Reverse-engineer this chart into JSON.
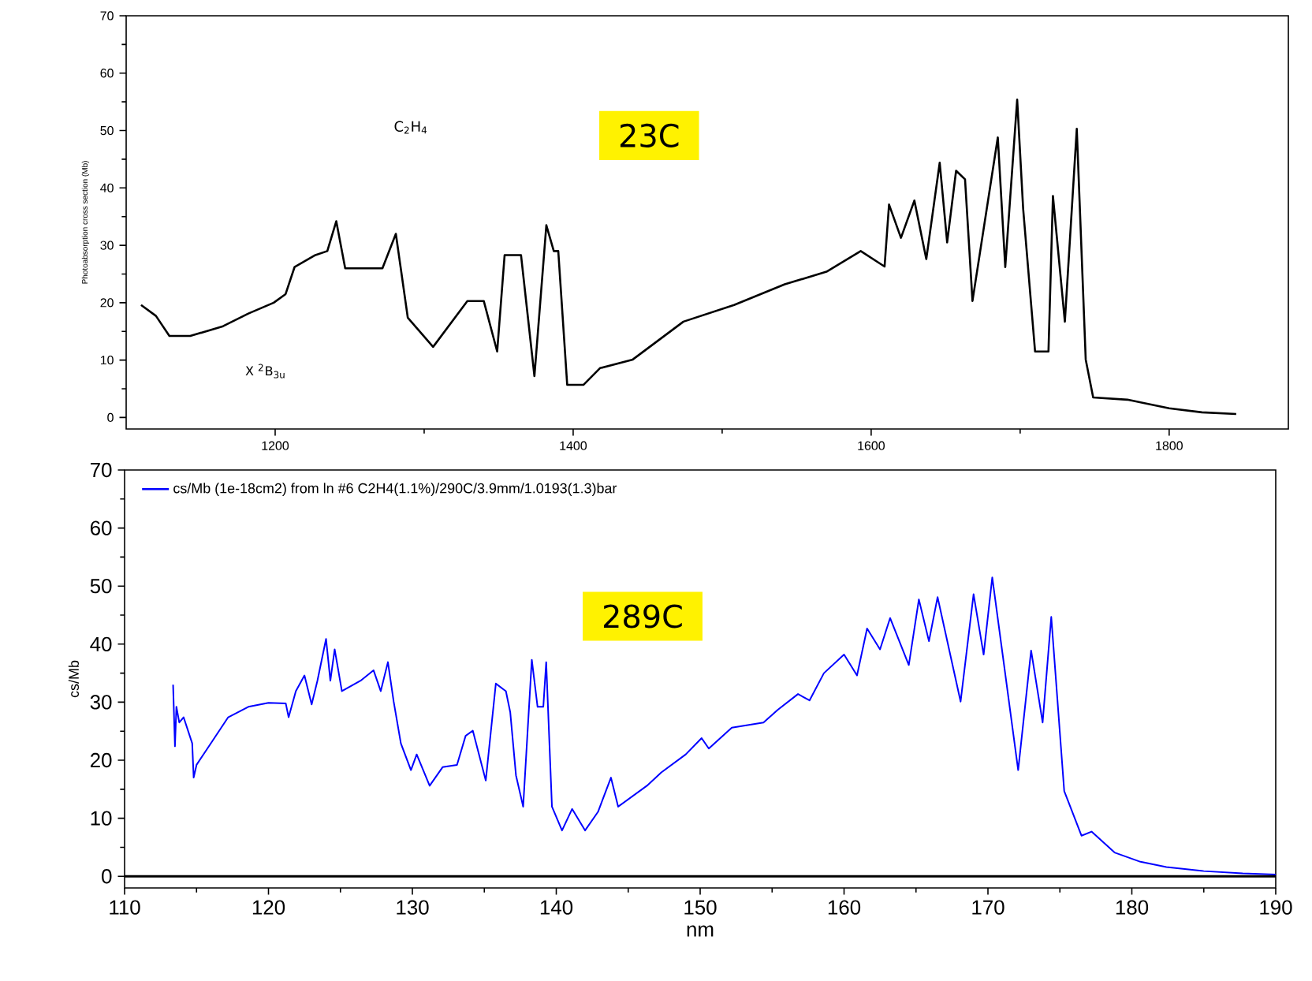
{
  "chart_data": [
    {
      "type": "line",
      "ylabel": "Photoabsorption cross section (Mb)",
      "xlim": [
        1100,
        1880
      ],
      "xticks": [
        1200,
        1400,
        1600,
        1800
      ],
      "ylim": [
        -2,
        70
      ],
      "yticks": [
        0,
        10,
        20,
        30,
        40,
        50,
        60,
        70
      ],
      "grid": false,
      "annotations": [
        "C$_{2}$H$_{4}$",
        "X $^{2}$B$_{3u}$",
        "23C"
      ],
      "series": [
        {
          "color": "#000000",
          "x": [
            1110,
            1120,
            1129,
            1143,
            1165,
            1182,
            1199,
            1207,
            1213,
            1227,
            1235,
            1241,
            1247,
            1272,
            1281,
            1289,
            1306,
            1329,
            1340,
            1349,
            1354,
            1365,
            1374,
            1382,
            1387,
            1390,
            1396,
            1407,
            1418,
            1440,
            1474,
            1508,
            1542,
            1570,
            1593,
            1609,
            1612,
            1620,
            1629,
            1637,
            1646,
            1651,
            1657,
            1663,
            1668,
            1685,
            1690,
            1698,
            1702,
            1710,
            1719,
            1722,
            1730,
            1738,
            1744,
            1749,
            1772,
            1800,
            1822,
            1845
          ],
          "values": [
            19.6,
            17.7,
            14.2,
            14.2,
            15.9,
            18.1,
            20,
            21.5,
            26.2,
            28.3,
            29,
            34.2,
            26,
            26,
            32,
            17.4,
            12.3,
            20.3,
            20.3,
            11.5,
            28.3,
            28.3,
            7.2,
            33.5,
            29,
            29,
            5.7,
            5.7,
            8.6,
            10.1,
            16.7,
            19.6,
            23.2,
            25.4,
            29,
            26.3,
            37.1,
            31.3,
            37.8,
            27.6,
            44.4,
            30.5,
            43,
            41.5,
            20.3,
            48.8,
            26.2,
            55.4,
            36.4,
            11.5,
            11.5,
            38.6,
            16.7,
            50.3,
            10.1,
            3.5,
            3.1,
            1.6,
            0.9,
            0.6
          ]
        }
      ]
    },
    {
      "type": "line",
      "xlabel": "nm",
      "ylabel": "cs/Mb",
      "xlim": [
        110,
        190
      ],
      "xticks": [
        110,
        120,
        130,
        140,
        150,
        160,
        170,
        180,
        190
      ],
      "ylim": [
        -2,
        70
      ],
      "yticks": [
        0,
        10,
        20,
        30,
        40,
        50,
        60,
        70
      ],
      "grid": false,
      "legend": "top left",
      "annotations": [
        "289C"
      ],
      "ref_lines": [
        {
          "axis": "y",
          "value": 0,
          "color": "#000000"
        }
      ],
      "series": [
        {
          "name": "cs/Mb (1e-18cm2) from ln  #6 C2H4(1.1%)/290C/3.9mm/1.0193(1.3)bar",
          "color": "#0000ff",
          "x": [
            113.37,
            113.5,
            113.6,
            113.8,
            114.1,
            114.7,
            114.8,
            115.0,
            116.1,
            117.2,
            118.6,
            120,
            121.2,
            121.4,
            121.9,
            122.5,
            123.0,
            123.4,
            124.0,
            124.3,
            124.6,
            125.1,
            126.4,
            127.3,
            127.8,
            128.3,
            128.7,
            129.2,
            129.9,
            130.3,
            131.2,
            132.1,
            133.1,
            133.7,
            134.2,
            135.1,
            135.8,
            136.5,
            136.8,
            137.2,
            137.7,
            138.3,
            138.7,
            139.1,
            139.3,
            139.7,
            140.4,
            141.1,
            142.0,
            142.9,
            143.8,
            144.3,
            146.3,
            147.3,
            149.0,
            150.1,
            150.6,
            152.2,
            154.4,
            155.4,
            156.8,
            157.6,
            158.6,
            160.0,
            160.9,
            161.6,
            162.5,
            163.2,
            164.5,
            165.2,
            165.9,
            166.5,
            168.1,
            169.0,
            169.7,
            170.3,
            172.1,
            173.0,
            173.8,
            174.4,
            175.3,
            176.5,
            177.2,
            178.8,
            180.6,
            182.4,
            185.0,
            187.7,
            190.0
          ],
          "values": [
            33.0,
            22.4,
            29.2,
            26.5,
            27.4,
            22.9,
            17.0,
            19.2,
            23.3,
            27.4,
            29.2,
            29.9,
            29.8,
            27.4,
            31.9,
            34.6,
            29.6,
            33.7,
            40.9,
            33.7,
            39.1,
            31.9,
            33.7,
            35.5,
            31.9,
            36.9,
            30.1,
            22.9,
            18.3,
            21.0,
            15.6,
            18.8,
            19.2,
            24.2,
            25.1,
            16.5,
            33.2,
            31.9,
            28.3,
            17.4,
            12.0,
            37.3,
            29.2,
            29.2,
            36.9,
            12.0,
            7.9,
            11.6,
            7.9,
            11.1,
            17.0,
            12.0,
            15.6,
            17.9,
            21.0,
            23.8,
            22.0,
            25.6,
            26.5,
            28.7,
            31.4,
            30.3,
            35.0,
            38.2,
            34.6,
            42.7,
            39.1,
            44.5,
            36.4,
            47.7,
            40.5,
            48.1,
            30.1,
            48.6,
            38.2,
            51.5,
            18.3,
            38.9,
            26.5,
            44.7,
            14.7,
            7.0,
            7.7,
            4.1,
            2.5,
            1.6,
            0.9,
            0.5,
            0.3
          ]
        }
      ]
    }
  ]
}
